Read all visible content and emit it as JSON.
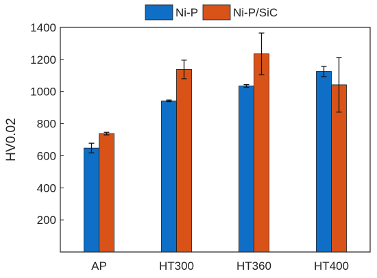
{
  "chart_data": {
    "type": "bar",
    "categories": [
      "AP",
      "HT300",
      "HT360",
      "HT400"
    ],
    "series": [
      {
        "name": "Ni-P",
        "color": "#0f6fc6",
        "values": [
          648,
          942,
          1035,
          1125
        ],
        "errors": [
          30,
          5,
          8,
          32
        ]
      },
      {
        "name": "Ni-P/SiC",
        "color": "#d95319",
        "values": [
          738,
          1138,
          1235,
          1042
        ],
        "errors": [
          8,
          58,
          130,
          170
        ]
      }
    ],
    "ylabel": "HV0.02",
    "ylim": [
      0,
      1400
    ],
    "yticks": [
      200,
      400,
      600,
      800,
      1000,
      1200,
      1400
    ],
    "grid": false,
    "legend": "top-center"
  }
}
